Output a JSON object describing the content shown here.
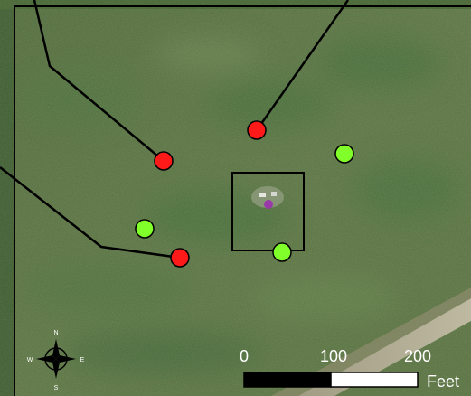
{
  "map": {
    "scale_bar": {
      "ticks": [
        "0",
        "100",
        "200"
      ],
      "unit": "Feet"
    },
    "compass": {
      "north": "N",
      "south": "S",
      "east": "E",
      "west": "W"
    },
    "markers": {
      "red": [
        "marker-1",
        "marker-2",
        "marker-3"
      ],
      "green": [
        "marker-4",
        "marker-5",
        "marker-6"
      ]
    },
    "colors": {
      "red_marker": "#ff1a1a",
      "green_marker": "#80ff2a",
      "callout_line": "#000000",
      "frame": "#000000",
      "scale_bar_dark": "#000000",
      "scale_bar_light": "#ffffff",
      "feature": "#9a3aa8"
    }
  }
}
